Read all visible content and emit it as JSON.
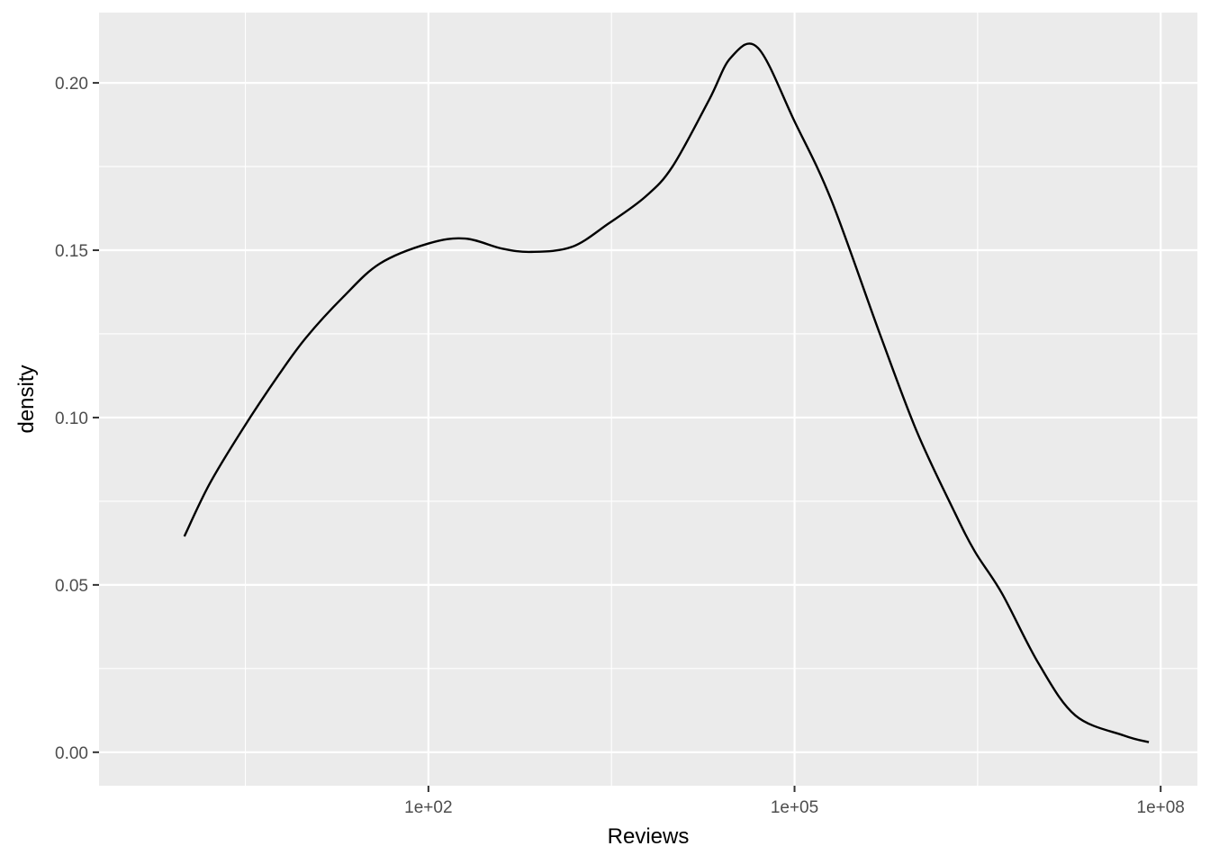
{
  "chart_data": {
    "type": "line",
    "title": "",
    "xlabel": "Reviews",
    "ylabel": "density",
    "x_scale": "log10",
    "xlim": [
      0.2,
      200000000
    ],
    "ylim": [
      -0.01,
      0.221
    ],
    "x_ticks": [
      {
        "value": 100,
        "label": "1e+02"
      },
      {
        "value": 100000,
        "label": "1e+05"
      },
      {
        "value": 100000000,
        "label": "1e+08"
      }
    ],
    "y_ticks": [
      {
        "value": 0.0,
        "label": "0.00"
      },
      {
        "value": 0.05,
        "label": "0.05"
      },
      {
        "value": 0.1,
        "label": "0.10"
      },
      {
        "value": 0.15,
        "label": "0.15"
      },
      {
        "value": 0.2,
        "label": "0.20"
      }
    ],
    "grid": true,
    "legend": "none",
    "colors": {
      "panel": "#ebebeb",
      "grid": "#ffffff",
      "line": "#000000"
    },
    "series": [
      {
        "x": [
          1,
          1.6,
          3,
          6,
          10,
          20,
          40,
          100,
          200,
          400,
          700,
          1500,
          3000,
          6000,
          10000,
          20000,
          30000,
          50000,
          100000,
          200000,
          500000,
          1000000,
          2000000,
          3000000,
          5000000,
          10000000,
          20000000,
          50000000,
          80000000
        ],
        "y": [
          0.0645,
          0.08,
          0.0965,
          0.113,
          0.124,
          0.136,
          0.146,
          0.152,
          0.1535,
          0.1505,
          0.1495,
          0.151,
          0.158,
          0.166,
          0.175,
          0.195,
          0.2075,
          0.2105,
          0.1885,
          0.165,
          0.125,
          0.096,
          0.0725,
          0.06,
          0.0475,
          0.0265,
          0.011,
          0.005,
          0.003
        ]
      }
    ]
  }
}
